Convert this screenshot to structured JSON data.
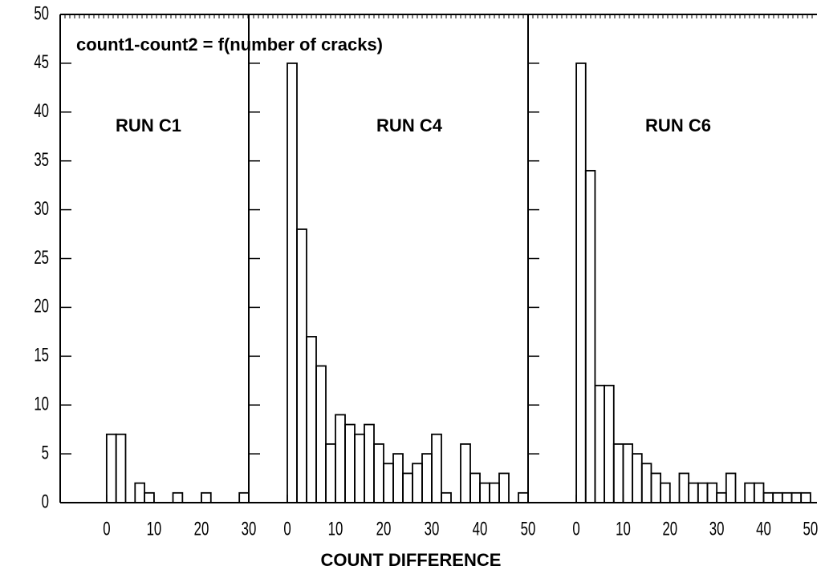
{
  "title": "count1-count2 = f(number of cracks)",
  "xlabel": "COUNT DIFFERENCE",
  "chart_data": [
    {
      "type": "histogram",
      "label": "RUN C1",
      "bins": [
        0,
        2,
        4,
        6,
        8,
        10,
        12,
        14,
        16,
        18,
        20,
        22,
        24,
        26,
        28,
        30
      ],
      "counts": [
        7,
        7,
        0,
        2,
        1,
        0,
        0,
        1,
        0,
        0,
        1,
        0,
        0,
        0,
        1
      ],
      "xlim": [
        -9.8,
        30
      ],
      "xticks": [
        0,
        10,
        20,
        30
      ],
      "ylim": [
        0,
        50
      ],
      "yticks": [
        0,
        5,
        10,
        15,
        20,
        25,
        30,
        35,
        40,
        45,
        50
      ],
      "color": "#000000"
    },
    {
      "type": "histogram",
      "label": "RUN C4",
      "bins": [
        0,
        2,
        4,
        6,
        8,
        10,
        12,
        14,
        16,
        18,
        20,
        22,
        24,
        26,
        28,
        30,
        32,
        34,
        36,
        38,
        40,
        42,
        44,
        46,
        48,
        50
      ],
      "counts": [
        45,
        28,
        17,
        14,
        6,
        9,
        8,
        7,
        8,
        6,
        4,
        5,
        3,
        4,
        5,
        7,
        1,
        0,
        6,
        3,
        2,
        2,
        3,
        0,
        1
      ],
      "xlim": [
        -8,
        50
      ],
      "xticks": [
        0,
        10,
        20,
        30,
        40,
        50
      ],
      "ylim": [
        0,
        50
      ],
      "yticks": [
        0,
        5,
        10,
        15,
        20,
        25,
        30,
        35,
        40,
        45,
        50
      ],
      "color": "#000000"
    },
    {
      "type": "histogram",
      "label": "RUN C6",
      "bins": [
        0,
        2,
        4,
        6,
        8,
        10,
        12,
        14,
        16,
        18,
        20,
        22,
        24,
        26,
        28,
        30,
        32,
        34,
        36,
        38,
        40,
        42,
        44,
        46,
        48,
        50
      ],
      "counts": [
        45,
        34,
        12,
        12,
        6,
        6,
        5,
        4,
        3,
        2,
        0,
        3,
        2,
        2,
        2,
        1,
        3,
        0,
        2,
        2,
        1,
        1,
        1,
        1,
        1
      ],
      "xlim": [
        -10.3,
        51.4
      ],
      "xticks": [
        0,
        10,
        20,
        30,
        40,
        50
      ],
      "ylim": [
        0,
        50
      ],
      "yticks": [
        0,
        5,
        10,
        15,
        20,
        25,
        30,
        35,
        40,
        45,
        50
      ],
      "color": "#000000"
    }
  ]
}
